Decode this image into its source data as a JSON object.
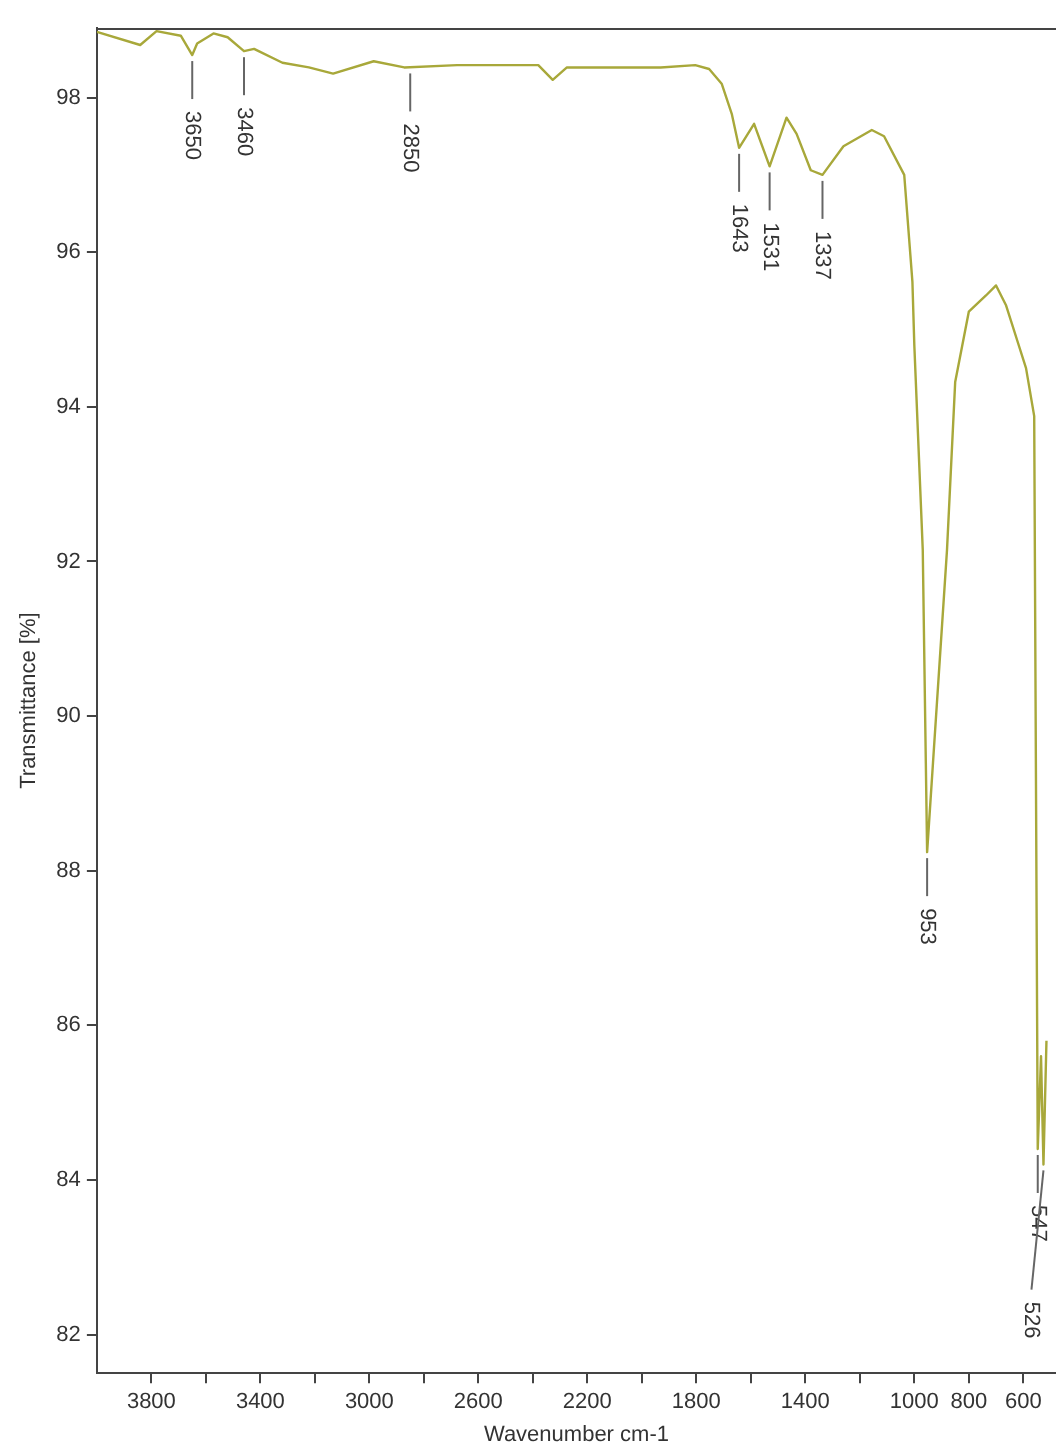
{
  "chart_data": {
    "type": "line",
    "xlabel": "Wavenumber cm-1",
    "ylabel": "Transmittance [%]",
    "xlim": [
      4000,
      480
    ],
    "ylim": [
      81.5,
      98.9
    ],
    "xticks": [
      {
        "value": 3800,
        "label": "3800"
      },
      {
        "value": 3600,
        "label": null
      },
      {
        "value": 3400,
        "label": "3400"
      },
      {
        "value": 3200,
        "label": null
      },
      {
        "value": 3000,
        "label": "3000"
      },
      {
        "value": 2800,
        "label": null
      },
      {
        "value": 2600,
        "label": "2600"
      },
      {
        "value": 2400,
        "label": null
      },
      {
        "value": 2200,
        "label": "2200"
      },
      {
        "value": 2000,
        "label": null
      },
      {
        "value": 1800,
        "label": "1800"
      },
      {
        "value": 1600,
        "label": null
      },
      {
        "value": 1400,
        "label": "1400"
      },
      {
        "value": 1200,
        "label": null
      },
      {
        "value": 1000,
        "label": "1000"
      },
      {
        "value": 800,
        "label": "800"
      },
      {
        "value": 600,
        "label": "600"
      }
    ],
    "yticks": [
      82,
      84,
      86,
      88,
      90,
      92,
      94,
      96,
      98
    ],
    "grid": false,
    "legend": false,
    "marker": "none",
    "line_style": "solid",
    "series": [
      {
        "color": "#a8a83a",
        "x": [
          4000,
          3841,
          3781,
          3692,
          3650,
          3632,
          3572,
          3520,
          3460,
          3423,
          3319,
          3222,
          3133,
          2984,
          2872,
          2678,
          2380,
          2327,
          2275,
          1931,
          1804,
          1753,
          1707,
          1670,
          1643,
          1588,
          1531,
          1469,
          1432,
          1380,
          1337,
          1260,
          1156,
          1111,
          1037,
          1007,
          1000,
          969,
          953,
          880,
          850,
          800,
          737,
          700,
          663,
          590,
          560,
          547,
          535,
          526,
          515
        ],
        "values": [
          98.85,
          98.68,
          98.86,
          98.8,
          98.55,
          98.7,
          98.83,
          98.78,
          98.6,
          98.63,
          98.45,
          98.39,
          98.31,
          98.47,
          98.39,
          98.42,
          98.42,
          98.23,
          98.39,
          98.39,
          98.42,
          98.37,
          98.18,
          97.79,
          97.35,
          97.66,
          97.11,
          97.74,
          97.53,
          97.06,
          97.0,
          97.37,
          97.58,
          97.5,
          97.0,
          95.62,
          94.8,
          92.15,
          88.24,
          92.15,
          94.32,
          95.23,
          95.44,
          95.57,
          95.31,
          94.5,
          93.88,
          84.4,
          85.6,
          84.2,
          85.8
        ]
      }
    ],
    "annotations": [
      {
        "text": "3650",
        "x": 3650,
        "y": 98.55
      },
      {
        "text": "3460",
        "x": 3460,
        "y": 98.6
      },
      {
        "text": "2850",
        "x": 2850,
        "y": 98.39
      },
      {
        "text": "1643",
        "x": 1643,
        "y": 97.35
      },
      {
        "text": "1531",
        "x": 1531,
        "y": 97.11
      },
      {
        "text": "1337",
        "x": 1337,
        "y": 97.0
      },
      {
        "text": "953",
        "x": 953,
        "y": 88.24
      },
      {
        "text": "547",
        "x": 547,
        "y": 84.4
      },
      {
        "text": "526",
        "x": 526,
        "y": 84.2
      }
    ]
  }
}
